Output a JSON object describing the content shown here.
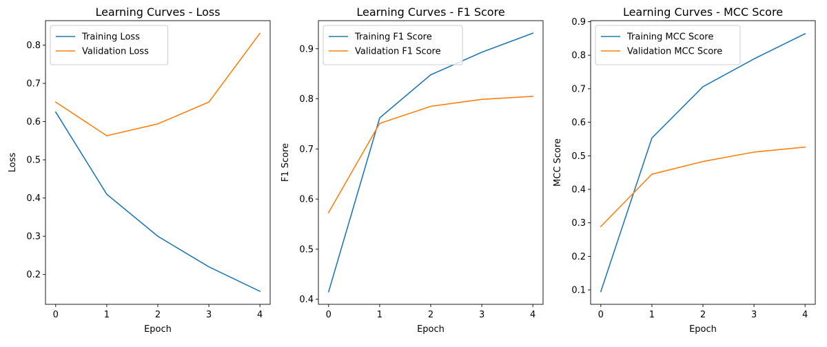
{
  "figure": {
    "background": "#ffffff",
    "series_colors": [
      "#1f77b4",
      "#ff7f0e"
    ]
  },
  "chart_data": [
    {
      "type": "line",
      "title": "Learning Curves - Loss",
      "xlabel": "Epoch",
      "ylabel": "Loss",
      "x": [
        0,
        1,
        2,
        3,
        4
      ],
      "xticks": [
        0,
        1,
        2,
        3,
        4
      ],
      "yticks": [
        0.2,
        0.3,
        0.4,
        0.5,
        0.6,
        0.7,
        0.8
      ],
      "xlim": [
        -0.2,
        4.2
      ],
      "ylim": [
        0.122,
        0.864
      ],
      "legend": "upper-left",
      "grid": false,
      "series": [
        {
          "name": "Training Loss",
          "color": "#1f77b4",
          "values": [
            0.625,
            0.41,
            0.3,
            0.22,
            0.156
          ]
        },
        {
          "name": "Validation Loss",
          "color": "#ff7f0e",
          "values": [
            0.651,
            0.563,
            0.594,
            0.651,
            0.831
          ]
        }
      ]
    },
    {
      "type": "line",
      "title": "Learning Curves - F1 Score",
      "xlabel": "Epoch",
      "ylabel": "F1 Score",
      "x": [
        0,
        1,
        2,
        3,
        4
      ],
      "xticks": [
        0,
        1,
        2,
        3,
        4
      ],
      "yticks": [
        0.4,
        0.5,
        0.6,
        0.7,
        0.8,
        0.9
      ],
      "xlim": [
        -0.2,
        4.2
      ],
      "ylim": [
        0.39,
        0.956
      ],
      "legend": "upper-left",
      "grid": false,
      "series": [
        {
          "name": "Training F1 Score",
          "color": "#1f77b4",
          "values": [
            0.415,
            0.762,
            0.848,
            0.893,
            0.931
          ]
        },
        {
          "name": "Validation F1 Score",
          "color": "#ff7f0e",
          "values": [
            0.573,
            0.751,
            0.785,
            0.799,
            0.805
          ]
        }
      ]
    },
    {
      "type": "line",
      "title": "Learning Curves - MCC Score",
      "xlabel": "Epoch",
      "ylabel": "MCC Score",
      "x": [
        0,
        1,
        2,
        3,
        4
      ],
      "xticks": [
        0,
        1,
        2,
        3,
        4
      ],
      "yticks": [
        0.1,
        0.2,
        0.3,
        0.4,
        0.5,
        0.6,
        0.7,
        0.8,
        0.9
      ],
      "xlim": [
        -0.2,
        4.2
      ],
      "ylim": [
        0.057,
        0.903
      ],
      "legend": "upper-left",
      "grid": false,
      "series": [
        {
          "name": "Training MCC Score",
          "color": "#1f77b4",
          "values": [
            0.095,
            0.553,
            0.706,
            0.789,
            0.864
          ]
        },
        {
          "name": "Validation MCC Score",
          "color": "#ff7f0e",
          "values": [
            0.289,
            0.445,
            0.483,
            0.511,
            0.526
          ]
        }
      ]
    }
  ]
}
